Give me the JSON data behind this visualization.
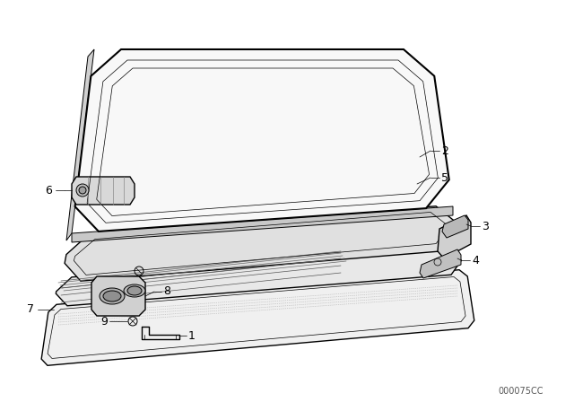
{
  "background_color": "#ffffff",
  "line_color": "#000000",
  "label_color": "#000000",
  "diagram_id": "000075CC",
  "lw_thick": 1.5,
  "lw_med": 1.0,
  "lw_thin": 0.7,
  "lw_hair": 0.5
}
